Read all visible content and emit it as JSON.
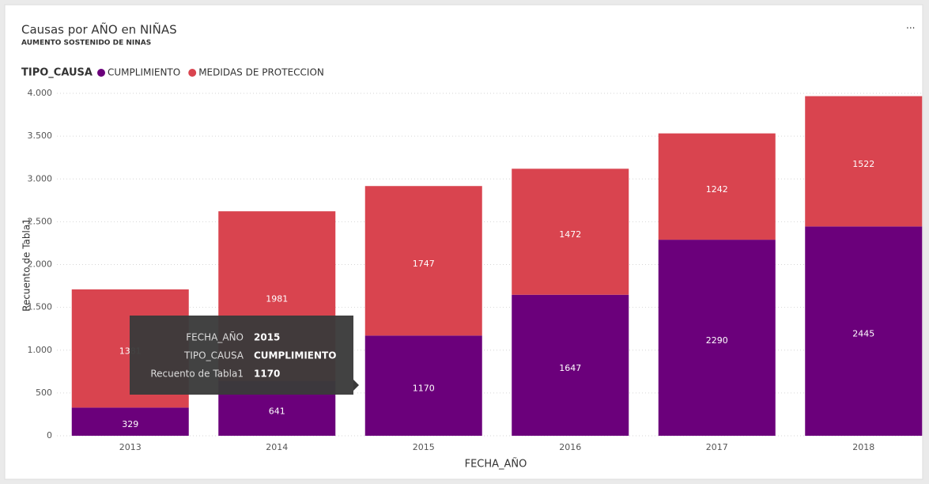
{
  "chart_data": {
    "type": "stacked_bar",
    "title": "Causas por AÑO en NIÑAS",
    "subtitle": "AUMENTO SOSTENIDO DE NINAS",
    "legend_title": "TIPO_CAUSA",
    "legend_position": "top-left",
    "x_label": "FECHA_AÑO",
    "y_label": "Recuento de Tabla1",
    "categories": [
      "2013",
      "2014",
      "2015",
      "2016",
      "2017",
      "2018"
    ],
    "series": [
      {
        "name": "CUMPLIMIENTO",
        "color": "#6b007b",
        "values": [
          329,
          641,
          1170,
          1647,
          2290,
          2445
        ]
      },
      {
        "name": "MEDIDAS DE PROTECCION",
        "color": "#d9444f",
        "values": [
          1381,
          1981,
          1747,
          1472,
          1242,
          1522
        ]
      }
    ],
    "ylim": [
      0,
      4000
    ],
    "yticks": [
      0,
      500,
      {
        "value": 1000,
        "label": "1.000"
      },
      {
        "value": 1500,
        "label": "1.500"
      },
      {
        "value": 2000,
        "label": "2.000"
      },
      {
        "value": 2500,
        "label": "2.500"
      },
      {
        "value": 3000,
        "label": "3.000"
      },
      {
        "value": 3500,
        "label": "3.500"
      },
      {
        "value": 4000,
        "label": "4.000"
      }
    ],
    "grid": true,
    "tooltip": {
      "rows": [
        {
          "label": "FECHA_AÑO",
          "value": "2015"
        },
        {
          "label": "TIPO_CAUSA",
          "value": "CUMPLIMIENTO"
        },
        {
          "label": "Recuento de Tabla1",
          "value": "1170"
        }
      ]
    }
  }
}
